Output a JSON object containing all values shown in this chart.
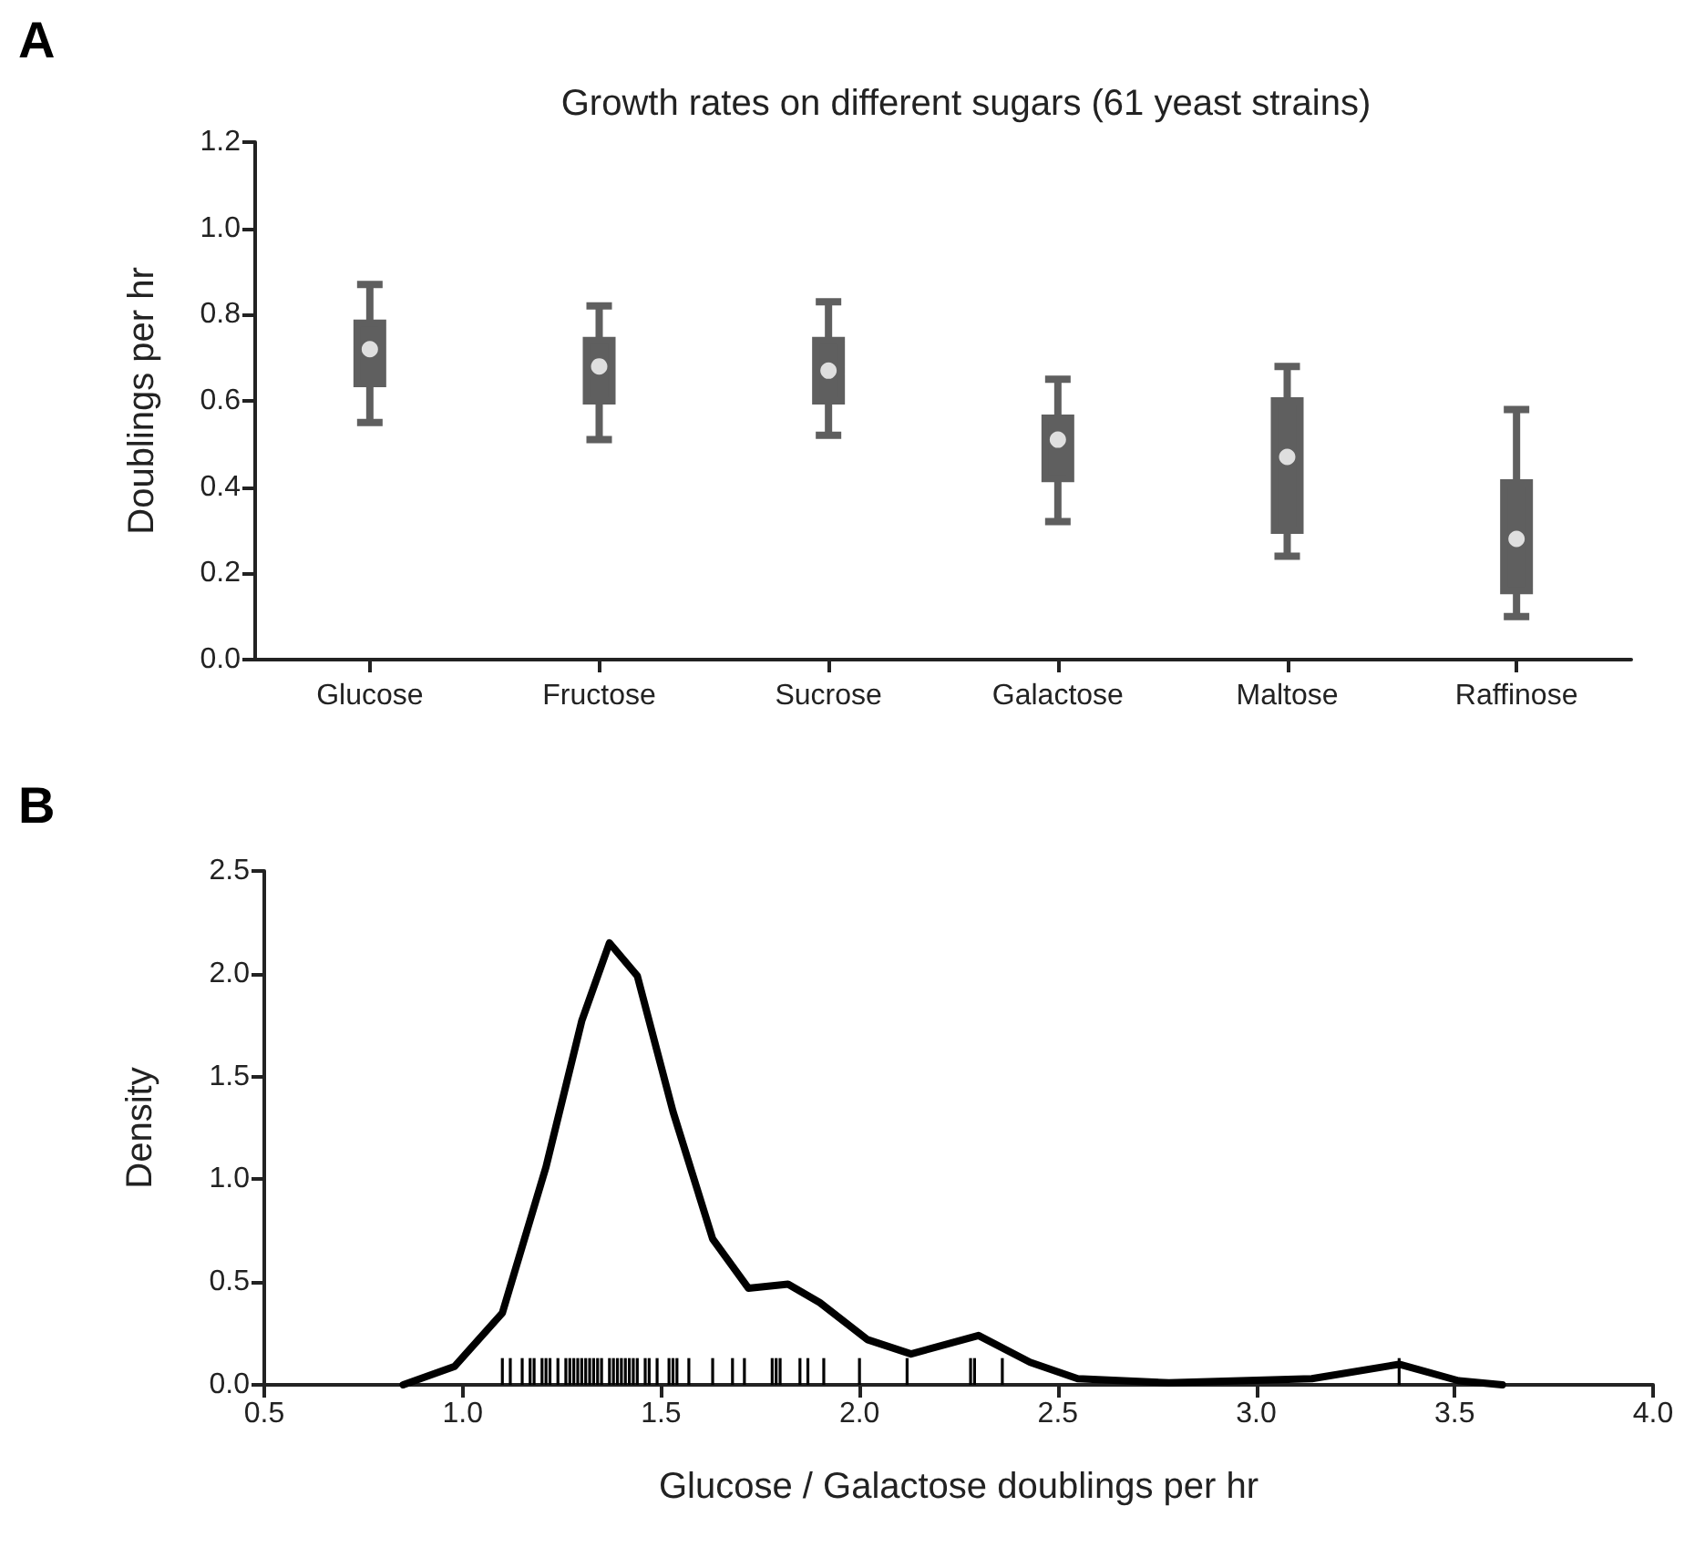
{
  "chart_data": [
    {
      "type": "box",
      "title": "Growth rates on different sugars (61 yeast strains)",
      "ylabel": "Doublings per hr",
      "annotations": [
        "A"
      ],
      "color": "#5f5f5f",
      "categories": [
        "Glucose",
        "Fructose",
        "Sucrose",
        "Galactose",
        "Maltose",
        "Raffinose"
      ],
      "boxes": [
        {
          "low": 0.55,
          "q1": 0.64,
          "median": 0.72,
          "q3": 0.78,
          "high": 0.87
        },
        {
          "low": 0.51,
          "q1": 0.6,
          "median": 0.68,
          "q3": 0.74,
          "high": 0.82
        },
        {
          "low": 0.52,
          "q1": 0.6,
          "median": 0.67,
          "q3": 0.74,
          "high": 0.83
        },
        {
          "low": 0.32,
          "q1": 0.42,
          "median": 0.51,
          "q3": 0.56,
          "high": 0.65
        },
        {
          "low": 0.24,
          "q1": 0.3,
          "median": 0.47,
          "q3": 0.6,
          "high": 0.68
        },
        {
          "low": 0.1,
          "q1": 0.16,
          "median": 0.28,
          "q3": 0.41,
          "high": 0.58
        }
      ],
      "series": [
        {
          "type": "scatter",
          "color": "#ffffff",
          "x": [
            "Glucose",
            "Fructose",
            "Sucrose",
            "Galactose",
            "Maltose",
            "Raffinose"
          ],
          "values": [
            0.72,
            0.68,
            0.67,
            0.51,
            0.47,
            0.28
          ]
        }
      ],
      "ylim": [
        0,
        1.2
      ],
      "yticks": [
        {
          "value": 0,
          "label": "0.0"
        },
        0.2,
        0.4,
        0.6,
        0.8,
        {
          "value": 1,
          "label": "1.0"
        },
        1.2
      ]
    },
    {
      "type": "line",
      "xlabel": "Glucose / Galactose doublings per hr",
      "ylabel": "Density",
      "annotations": [
        "B"
      ],
      "series": [
        {
          "color": "#000000",
          "x": [
            0.85,
            0.98,
            1.1,
            1.21,
            1.3,
            1.37,
            1.44,
            1.53,
            1.63,
            1.72,
            1.82,
            1.9,
            2.02,
            2.13,
            2.3,
            2.43,
            2.55,
            2.78,
            3.14,
            3.36,
            3.51,
            3.62
          ],
          "values": [
            0.0,
            0.09,
            0.35,
            1.06,
            1.77,
            2.15,
            1.99,
            1.33,
            0.71,
            0.47,
            0.49,
            0.4,
            0.22,
            0.15,
            0.24,
            0.11,
            0.03,
            0.01,
            0.03,
            0.1,
            0.02,
            0.0
          ]
        },
        {
          "type": "bar",
          "color": "#000000",
          "x": [
            1.1,
            1.12,
            1.15,
            1.17,
            1.18,
            1.2,
            1.21,
            1.22,
            1.24,
            1.26,
            1.27,
            1.28,
            1.29,
            1.3,
            1.31,
            1.32,
            1.33,
            1.34,
            1.35,
            1.37,
            1.38,
            1.39,
            1.4,
            1.41,
            1.42,
            1.43,
            1.44,
            1.46,
            1.47,
            1.49,
            1.52,
            1.53,
            1.54,
            1.57,
            1.63,
            1.68,
            1.71,
            1.78,
            1.79,
            1.8,
            1.85,
            1.87,
            1.91,
            2.0,
            2.12,
            2.28,
            2.29,
            2.36,
            3.36
          ],
          "values": [
            0.13,
            0.13,
            0.13,
            0.13,
            0.13,
            0.13,
            0.13,
            0.13,
            0.13,
            0.13,
            0.13,
            0.13,
            0.13,
            0.13,
            0.13,
            0.13,
            0.13,
            0.13,
            0.13,
            0.13,
            0.13,
            0.13,
            0.13,
            0.13,
            0.13,
            0.13,
            0.13,
            0.13,
            0.13,
            0.13,
            0.13,
            0.13,
            0.13,
            0.13,
            0.13,
            0.13,
            0.13,
            0.13,
            0.13,
            0.13,
            0.13,
            0.13,
            0.13,
            0.13,
            0.13,
            0.13,
            0.13,
            0.13,
            0.13
          ]
        }
      ],
      "xlim": [
        0.5,
        4.0
      ],
      "xticks": [
        0.5,
        {
          "value": 1,
          "label": "1.0"
        },
        1.5,
        {
          "value": 2,
          "label": "2.0"
        },
        2.5,
        {
          "value": 3,
          "label": "3.0"
        },
        3.5,
        {
          "value": 4,
          "label": "4.0"
        }
      ],
      "ylim": [
        0,
        2.5
      ],
      "yticks": [
        {
          "value": 0,
          "label": "0.0"
        },
        0.5,
        {
          "value": 1,
          "label": "1.0"
        },
        1.5,
        {
          "value": 2,
          "label": "2.0"
        },
        2.5
      ]
    }
  ]
}
